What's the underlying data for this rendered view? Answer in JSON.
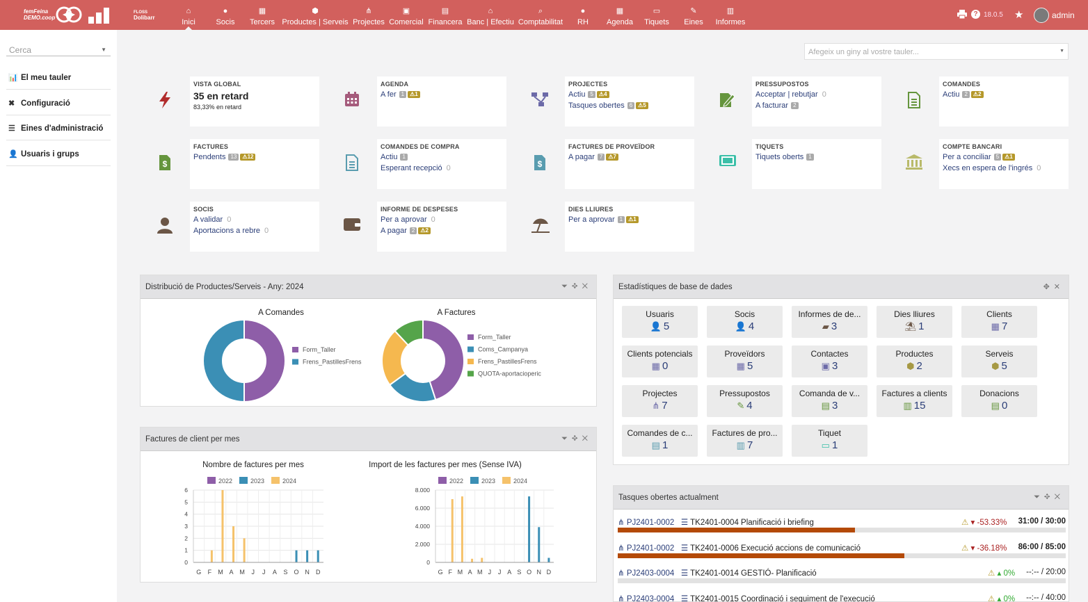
{
  "topbar": {
    "logo_text_1": "femFeina",
    "logo_text_2": "DEMO.coop",
    "logo2_line1": "FLOSS",
    "logo2_line2": "Dolibarr",
    "menu": [
      {
        "icon": "home-icon",
        "label": "Inici",
        "active": true
      },
      {
        "icon": "user-icon",
        "label": "Socis"
      },
      {
        "icon": "building-icon",
        "label": "Tercers"
      },
      {
        "icon": "cube-icon",
        "label": "Productes | Serveis"
      },
      {
        "icon": "project-icon",
        "label": "Projectes"
      },
      {
        "icon": "briefcase-icon",
        "label": "Comercial"
      },
      {
        "icon": "money-icon",
        "label": "Financera"
      },
      {
        "icon": "bank-icon",
        "label": "Banc | Efectiu"
      },
      {
        "icon": "search-dollar-icon",
        "label": "Comptabilitat"
      },
      {
        "icon": "user-tie-icon",
        "label": "RH"
      },
      {
        "icon": "calendar-icon",
        "label": "Agenda"
      },
      {
        "icon": "ticket-icon",
        "label": "Tiquets"
      },
      {
        "icon": "wrench-icon",
        "label": "Eines"
      },
      {
        "icon": "report-icon",
        "label": "Informes"
      }
    ],
    "version": "18.0.5",
    "user": "admin"
  },
  "sidebar": {
    "search_placeholder": "Cerca",
    "items": [
      {
        "icon": "chart-icon",
        "label": "El meu tauler"
      },
      {
        "icon": "tools-icon",
        "label": "Configuració"
      },
      {
        "icon": "server-icon",
        "label": "Eines d'administració"
      },
      {
        "icon": "user-icon",
        "label": "Usuaris i grups"
      }
    ]
  },
  "widget_select": {
    "placeholder": "Afegeix un giny al vostre tauler..."
  },
  "boxes": {
    "vista": {
      "title": "VISTA GLOBAL",
      "big": "35 en retard",
      "small": "83,33% en retard",
      "color": "#a22"
    },
    "agenda": {
      "title": "AGENDA",
      "l1": "A fer",
      "l1_count": "1",
      "l1_warn": "1",
      "color": "#a55b7c"
    },
    "projectes": {
      "title": "PROJECTES",
      "l1": "Actiu",
      "l1_count": "5",
      "l1_warn": "4",
      "l2": "Tasques obertes",
      "l2_count": "6",
      "l2_warn": "5",
      "color": "#6c6aa8"
    },
    "pressupostos": {
      "title": "PRESSUPOSTOS",
      "l1": "Acceptar | rebutjar",
      "l1_zero": "0",
      "l2": "A facturar",
      "l2_count": "2",
      "color": "#65953d"
    },
    "comandes": {
      "title": "COMANDES",
      "l1": "Actiu",
      "l1_count": "2",
      "l1_warn": "2",
      "color": "#65953d"
    },
    "factures": {
      "title": "FACTURES",
      "l1": "Pendents",
      "l1_count": "13",
      "l1_warn": "12",
      "color": "#65953d"
    },
    "comandes_compra": {
      "title": "COMANDES DE COMPRA",
      "l1": "Actiu",
      "l1_count": "1",
      "l2": "Esperant recepció",
      "l2_zero": "0",
      "color": "#599caf"
    },
    "factures_proveidor": {
      "title": "FACTURES DE PROVEÏDOR",
      "l1": "A pagar",
      "l1_count": "7",
      "l1_warn": "7",
      "color": "#599caf"
    },
    "tiquets": {
      "title": "TIQUETS",
      "l1": "Tiquets oberts",
      "l1_count": "1",
      "color": "#3bbfa8"
    },
    "compte_bancari": {
      "title": "COMPTE BANCARI",
      "l1": "Per a conciliar",
      "l1_count": "5",
      "l1_warn": "1",
      "l2": "Xecs en espera de l'ingrés",
      "l2_zero": "0",
      "color": "#b9ba6a"
    },
    "socis": {
      "title": "SOCIS",
      "l1": "A validar",
      "l1_zero": "0",
      "l2": "Aportacions a rebre",
      "l2_zero": "0",
      "color": "#6b5646"
    },
    "despeses": {
      "title": "INFORME DE DESPESES",
      "l1": "Per a aprovar",
      "l1_zero": "0",
      "l2": "A pagar",
      "l2_count": "2",
      "l2_warn": "2",
      "color": "#6b5646"
    },
    "dies_lliures": {
      "title": "DIES LLIURES",
      "l1": "Per a aprovar",
      "l1_count": "1",
      "l1_warn": "1",
      "color": "#6b5646"
    }
  },
  "panels": {
    "distribucio": {
      "title": "Distribució de Productes/Serveis - Any: 2024"
    },
    "factures_mes": {
      "title": "Factures de client per mes"
    },
    "estadistiques": {
      "title": "Estadístiques de base de dades"
    },
    "tasques": {
      "title": "Tasques obertes actualment"
    }
  },
  "chart_data": [
    {
      "type": "pie",
      "title": "A Comandes",
      "labels": [
        "Form_Taller",
        "Frens_PastillesFrens"
      ],
      "values": [
        50,
        50
      ],
      "colors": [
        "#8e5ea8",
        "#3b8fb5"
      ]
    },
    {
      "type": "pie",
      "title": "A Factures",
      "labels": [
        "Form_Taller",
        "Coms_Campanya",
        "Frens_PastillesFrens",
        "QUOTA-aportacioperic"
      ],
      "values": [
        45,
        20,
        23,
        12
      ],
      "colors": [
        "#8e5ea8",
        "#3b8fb5",
        "#f5b84f",
        "#55a44a"
      ]
    },
    {
      "type": "bar",
      "title": "Nombre de factures per mes",
      "categories": [
        "G",
        "F",
        "M",
        "A",
        "M",
        "J",
        "J",
        "A",
        "S",
        "O",
        "N",
        "D"
      ],
      "series": [
        {
          "name": "2022",
          "values": [
            0,
            0,
            0,
            0,
            0,
            0,
            0,
            0,
            0,
            0,
            0,
            0
          ]
        },
        {
          "name": "2023",
          "values": [
            0,
            0,
            0,
            0,
            0,
            0,
            0,
            0,
            0,
            1,
            1,
            1
          ]
        },
        {
          "name": "2024",
          "values": [
            0,
            1,
            6,
            3,
            2,
            0,
            0,
            0,
            0,
            0,
            0,
            0
          ]
        }
      ],
      "colors": [
        "#8e5ea8",
        "#3b8fb5",
        "#f5c26b"
      ],
      "ylim": [
        0,
        6
      ],
      "yticks": [
        "0",
        "1",
        "2",
        "3",
        "4",
        "5",
        "6"
      ]
    },
    {
      "type": "bar",
      "title": "Import de les factures per mes (Sense IVA)",
      "categories": [
        "G",
        "F",
        "M",
        "A",
        "M",
        "J",
        "J",
        "A",
        "S",
        "O",
        "N",
        "D"
      ],
      "series": [
        {
          "name": "2022",
          "values": [
            0,
            0,
            0,
            0,
            0,
            0,
            0,
            0,
            0,
            0,
            0,
            0
          ]
        },
        {
          "name": "2023",
          "values": [
            0,
            0,
            0,
            0,
            0,
            0,
            0,
            0,
            0,
            7300,
            3900,
            500
          ]
        },
        {
          "name": "2024",
          "values": [
            0,
            7000,
            7300,
            400,
            500,
            0,
            0,
            0,
            0,
            0,
            0,
            0
          ]
        }
      ],
      "colors": [
        "#8e5ea8",
        "#3b8fb5",
        "#f5c26b"
      ],
      "ylim": [
        0,
        8000
      ],
      "yticks": [
        "0",
        "2.000",
        "4.000",
        "6.000",
        "8.000"
      ]
    }
  ],
  "stats": [
    {
      "label": "Usuaris",
      "value": "5",
      "icon": "user-icon",
      "color": "#6b5646"
    },
    {
      "label": "Socis",
      "value": "4",
      "icon": "user-icon",
      "color": "#6b5646"
    },
    {
      "label": "Informes de de...",
      "value": "3",
      "icon": "wallet-icon",
      "color": "#6b5646"
    },
    {
      "label": "Dies lliures",
      "value": "1",
      "icon": "umbrella-icon",
      "color": "#6b5646"
    },
    {
      "label": "Clients",
      "value": "7",
      "icon": "building-icon",
      "color": "#6c6aa8"
    },
    {
      "label": "Clients potencials",
      "value": "0",
      "icon": "building-icon",
      "color": "#6c6aa8"
    },
    {
      "label": "Proveïdors",
      "value": "5",
      "icon": "building-icon",
      "color": "#6c6aa8"
    },
    {
      "label": "Contactes",
      "value": "3",
      "icon": "contact-icon",
      "color": "#6c6aa8"
    },
    {
      "label": "Productes",
      "value": "2",
      "icon": "cube-icon",
      "color": "#a69944"
    },
    {
      "label": "Serveis",
      "value": "5",
      "icon": "cube-icon",
      "color": "#a69944"
    },
    {
      "label": "Projectes",
      "value": "7",
      "icon": "project-icon",
      "color": "#6c6aa8"
    },
    {
      "label": "Pressupostos",
      "value": "4",
      "icon": "proposal-icon",
      "color": "#65953d"
    },
    {
      "label": "Comanda de v...",
      "value": "3",
      "icon": "order-icon",
      "color": "#65953d"
    },
    {
      "label": "Factures a clients",
      "value": "15",
      "icon": "invoice-icon",
      "color": "#65953d"
    },
    {
      "label": "Donacions",
      "value": "0",
      "icon": "donation-icon",
      "color": "#65953d"
    },
    {
      "label": "Comandes de c...",
      "value": "1",
      "icon": "order-icon",
      "color": "#599caf"
    },
    {
      "label": "Factures de pro...",
      "value": "7",
      "icon": "invoice-icon",
      "color": "#599caf"
    },
    {
      "label": "Tiquet",
      "value": "1",
      "icon": "ticket-icon",
      "color": "#3bbfa8"
    }
  ],
  "tasks": [
    {
      "project": "PJ2401-0002",
      "task": "TK2401-0004 Planificació i briefing",
      "pct": "-53.33%",
      "time": "31:00 / 30:00",
      "progress": 0.53,
      "trend": "down"
    },
    {
      "project": "PJ2401-0002",
      "task": "TK2401-0006 Execució accions de comunicació",
      "pct": "-36.18%",
      "time": "86:00 / 85:00",
      "progress": 0.64,
      "trend": "down"
    },
    {
      "project": "PJ2403-0004",
      "task": "TK2401-0014 GESTIÓ- Planificació",
      "pct": "0%",
      "time": "--:-- / 20:00",
      "progress": 0,
      "trend": "up"
    },
    {
      "project": "PJ2403-0004",
      "task": "TK2401-0015 Coordinació i seguiment de l'execució",
      "pct": "0%",
      "time": "--:-- / 40:00",
      "progress": 0,
      "trend": "up"
    }
  ]
}
